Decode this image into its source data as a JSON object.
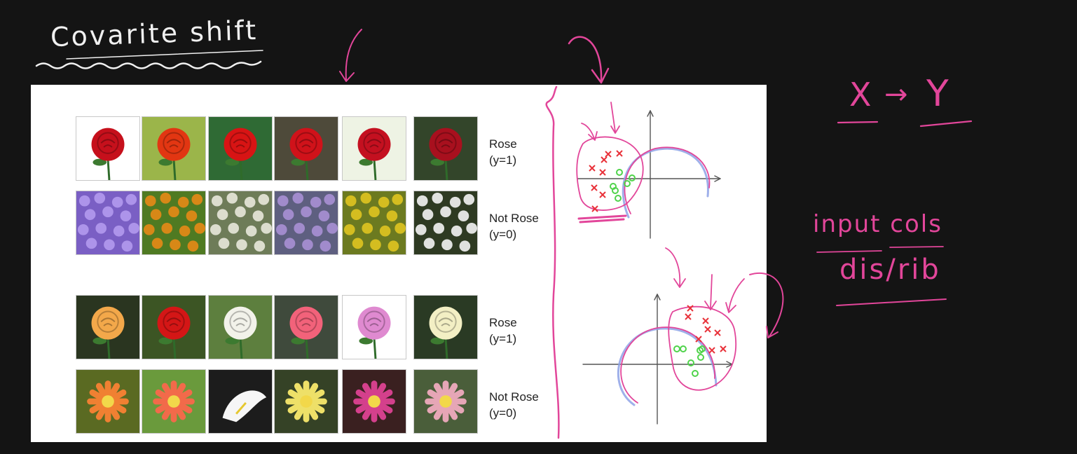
{
  "heading": "Covarite shift",
  "notes": {
    "x": "X",
    "arrow": "→",
    "y": "Y",
    "line1": "input cols",
    "line2": "dis/rib"
  },
  "slide": {
    "groups": [
      {
        "rows": [
          {
            "label1": "Rose",
            "label2": "(y=1)",
            "tiles": [
              {
                "bg": "#ffffff",
                "flower": "#c6101c",
                "kind": "rose"
              },
              {
                "bg": "#9bb54a",
                "flower": "#e23612",
                "kind": "rose"
              },
              {
                "bg": "#2f6a34",
                "flower": "#d81414",
                "kind": "rose"
              },
              {
                "bg": "#4e4a3a",
                "flower": "#d0121a",
                "kind": "rose"
              },
              {
                "bg": "#eef3e4",
                "flower": "#c41020",
                "kind": "rose"
              },
              {
                "bg": "#33452a",
                "flower": "#a8101e",
                "kind": "rose"
              }
            ]
          },
          {
            "label1": "Not Rose",
            "label2": "(y=0)",
            "tiles": [
              {
                "bg": "#7a5fc4",
                "flower": "#b29aee",
                "kind": "cluster"
              },
              {
                "bg": "#4f7a22",
                "flower": "#e58a16",
                "kind": "cluster"
              },
              {
                "bg": "#6e7c58",
                "flower": "#e8e8dc",
                "kind": "cluster"
              },
              {
                "bg": "#5e5f80",
                "flower": "#a890d4",
                "kind": "cluster"
              },
              {
                "bg": "#6c7a20",
                "flower": "#e0c420",
                "kind": "cluster"
              },
              {
                "bg": "#2e3a22",
                "flower": "#f4f4f4",
                "kind": "cluster"
              }
            ]
          }
        ]
      },
      {
        "rows": [
          {
            "label1": "Rose",
            "label2": "(y=1)",
            "tiles": [
              {
                "bg": "#2a3520",
                "flower": "#f3a84a",
                "kind": "rose"
              },
              {
                "bg": "#3c5524",
                "flower": "#d41616",
                "kind": "rose"
              },
              {
                "bg": "#5d7f3e",
                "flower": "#f2f2ea",
                "kind": "rose"
              },
              {
                "bg": "#3f4a3c",
                "flower": "#f2627a",
                "kind": "rose"
              },
              {
                "bg": "#ffffff",
                "flower": "#df8ad0",
                "kind": "rose"
              },
              {
                "bg": "#2a3a24",
                "flower": "#f3efc4",
                "kind": "rose"
              }
            ]
          },
          {
            "label1": "Not Rose",
            "label2": "(y=0)",
            "tiles": [
              {
                "bg": "#5a6a22",
                "flower": "#f08032",
                "kind": "star"
              },
              {
                "bg": "#6a9a3c",
                "flower": "#f26a4a",
                "kind": "star"
              },
              {
                "bg": "#1c1c1c",
                "flower": "#f6f6f6",
                "kind": "lily"
              },
              {
                "bg": "#354226",
                "flower": "#eee068",
                "kind": "star"
              },
              {
                "bg": "#3a2020",
                "flower": "#d4408c",
                "kind": "star"
              },
              {
                "bg": "#4a5e3a",
                "flower": "#e6a6b6",
                "kind": "star"
              }
            ]
          }
        ]
      }
    ]
  },
  "plots": [
    {
      "red_x": 8,
      "green_o": 6
    },
    {
      "red_x": 8,
      "green_o": 7
    }
  ],
  "colors": {
    "background": "#141414",
    "ink": "#e2469a",
    "chalk": "#f0f0f0",
    "blue": "#8ea2e6",
    "red_mark": "#e8323a",
    "green_mark": "#4fd34a"
  }
}
